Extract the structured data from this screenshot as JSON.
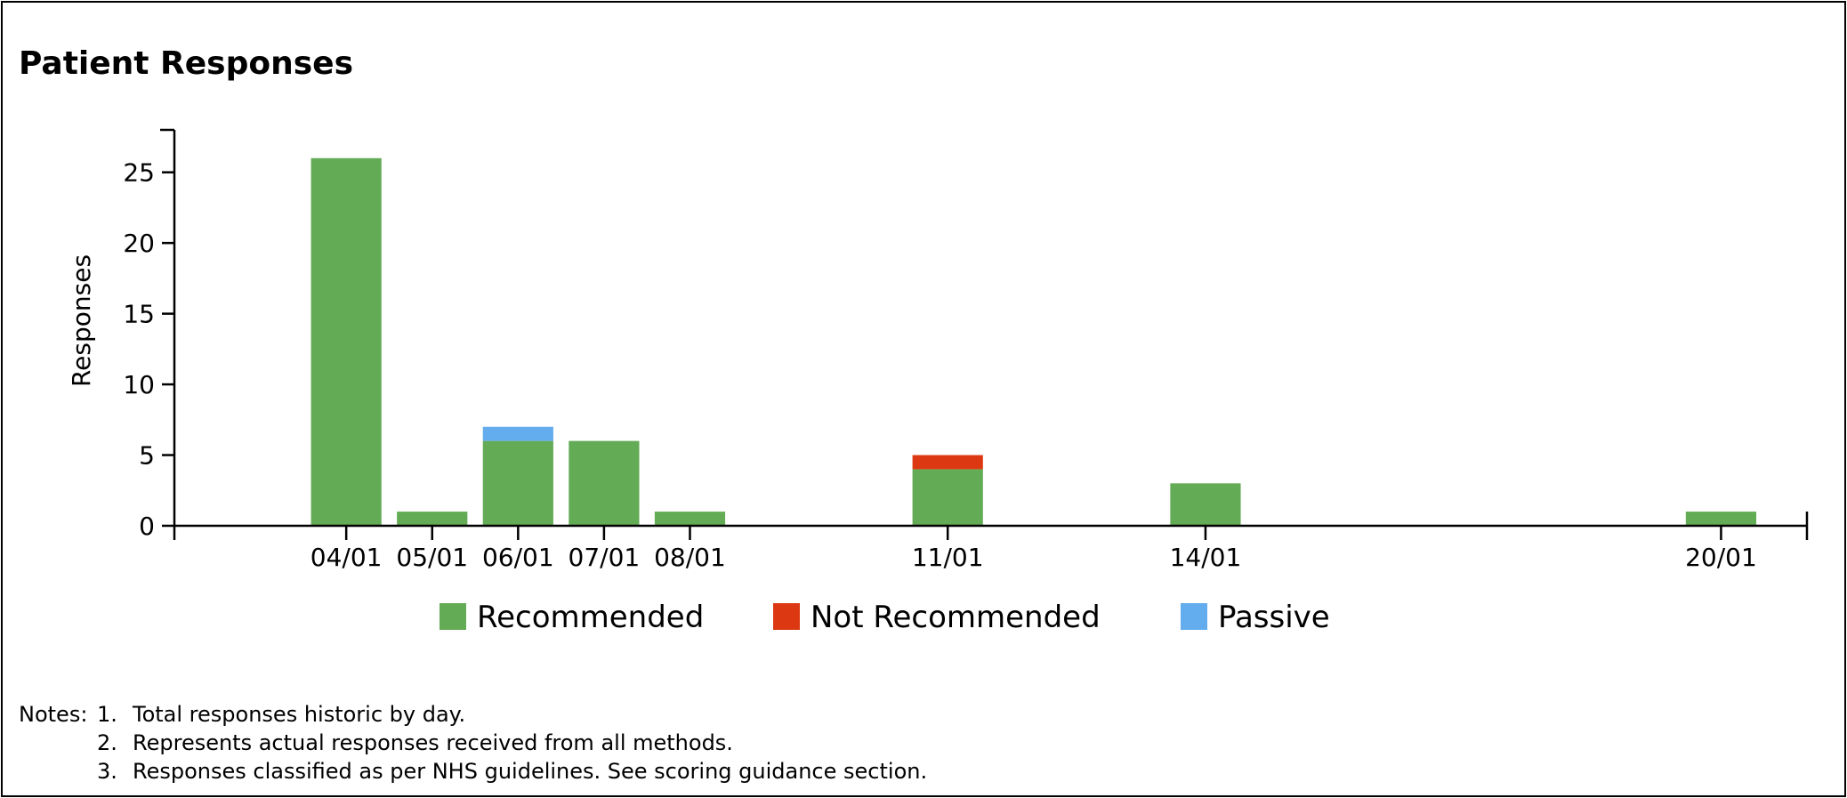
{
  "panel": {
    "title": "Patient Responses"
  },
  "chart_data": {
    "type": "bar",
    "stacked": true,
    "title": "Patient Responses",
    "xlabel": "",
    "ylabel": "Responses",
    "x_type": "date",
    "date_format": "DD/MM",
    "x": [
      "04/01",
      "05/01",
      "06/01",
      "07/01",
      "08/01",
      "11/01",
      "14/01",
      "20/01"
    ],
    "x_ticks": [
      "04/01",
      "05/01",
      "06/01",
      "07/01",
      "08/01",
      "11/01",
      "14/01",
      "20/01"
    ],
    "xlim": [
      "02/01",
      "21/01"
    ],
    "ylim": [
      0,
      28
    ],
    "y_ticks": [
      0,
      5,
      10,
      15,
      20,
      25
    ],
    "series": [
      {
        "name": "Recommended",
        "color": "#63ab55",
        "values": [
          26,
          1,
          6,
          6,
          1,
          4,
          3,
          1
        ]
      },
      {
        "name": "Not Recommended",
        "color": "#dc3912",
        "values": [
          0,
          0,
          0,
          0,
          0,
          1,
          0,
          0
        ]
      },
      {
        "name": "Passive",
        "color": "#63aced",
        "values": [
          0,
          0,
          1,
          0,
          0,
          0,
          0,
          0
        ]
      }
    ],
    "grid": false,
    "legend": "bottom-center"
  },
  "notes": {
    "lead": "Notes:",
    "items": [
      {
        "num": "1.",
        "text": "Total responses historic by day."
      },
      {
        "num": "2.",
        "text": "Represents actual responses received from all methods."
      },
      {
        "num": "3.",
        "text": "Responses classified as per NHS guidelines. See scoring guidance section."
      }
    ]
  }
}
